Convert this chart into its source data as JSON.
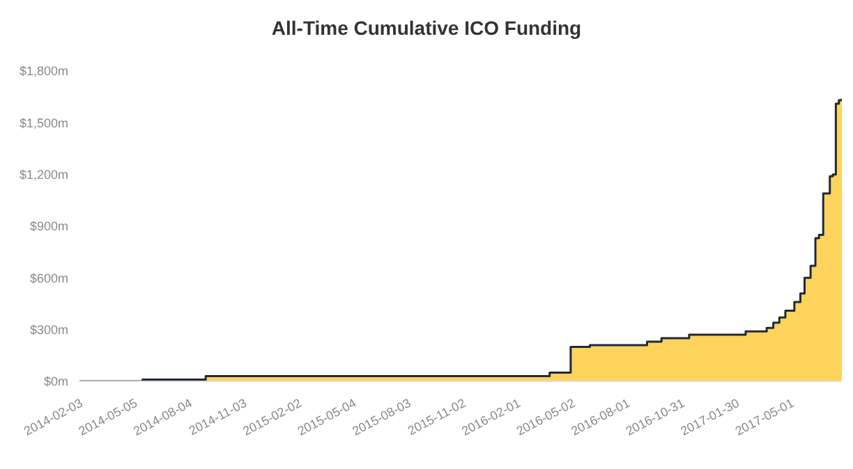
{
  "chart_data": {
    "type": "area",
    "title": "All-Time Cumulative ICO Funding",
    "x": [
      "2014-02-03",
      "2014-05-19",
      "2014-09-01",
      "2015-09-30",
      "2016-03-26",
      "2016-04-30",
      "2016-06-01",
      "2016-09-04",
      "2016-09-28",
      "2016-11-13",
      "2017-02-15",
      "2017-03-22",
      "2017-04-02",
      "2017-04-12",
      "2017-04-22",
      "2017-05-07",
      "2017-05-17",
      "2017-05-24",
      "2017-06-03",
      "2017-06-11",
      "2017-06-17",
      "2017-06-24",
      "2017-07-05",
      "2017-07-10",
      "2017-07-15",
      "2017-07-20",
      "2017-07-25"
    ],
    "series": [
      {
        "color": "#fdd35c",
        "values": [
          0,
          10,
          30,
          30,
          50,
          200,
          210,
          230,
          250,
          270,
          290,
          310,
          340,
          370,
          410,
          460,
          510,
          600,
          670,
          830,
          850,
          1090,
          1190,
          1200,
          1610,
          1630,
          1640
        ]
      }
    ],
    "xlim": [
      "2014-02-03",
      "2017-07-25"
    ],
    "xticks": [
      "2014-02-03",
      "2014-05-05",
      "2014-08-04",
      "2014-11-03",
      "2015-02-02",
      "2015-05-04",
      "2015-08-03",
      "2015-11-02",
      "2016-02-01",
      "2016-05-02",
      "2016-08-01",
      "2016-10-31",
      "2017-01-30",
      "2017-05-01"
    ],
    "ylim": [
      0,
      1800
    ],
    "yticks": [
      {
        "value": 0,
        "label": "$0m"
      },
      {
        "value": 300,
        "label": "$300m"
      },
      {
        "value": 600,
        "label": "$600m"
      },
      {
        "value": 900,
        "label": "$900m"
      },
      {
        "value": 1200,
        "label": "$1,200m"
      },
      {
        "value": 1500,
        "label": "$1,500m"
      },
      {
        "value": 1800,
        "label": "$1,800m"
      }
    ],
    "grid": false,
    "legend": false
  }
}
